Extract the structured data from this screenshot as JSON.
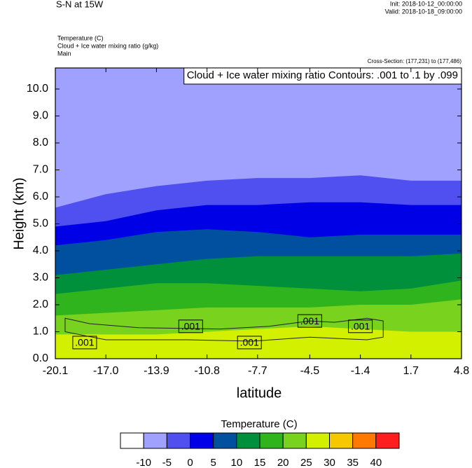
{
  "chart_data": {
    "type": "contour",
    "title": "S-N at 15W",
    "init": "Init: 2018-10-12_00:00:00",
    "valid": "Valid: 2018-10-18_09:00:00",
    "fields": [
      "Temperature   (C)",
      "Cloud + Ice water mixing ratio   (g/kg)",
      "Main"
    ],
    "cross_section": "Cross-Section: (177,231) to (177,486)",
    "contour_info": "Cloud + Ice water mixing ratio Contours: .001 to .1 by .099",
    "y_label": "Height (km)",
    "x_label": "latitude",
    "xlim": [
      -20.1,
      4.8
    ],
    "ylim": [
      0,
      10.78
    ],
    "xticks": [
      {
        "value": -20.1,
        "label": "-20.1"
      },
      {
        "value": -17,
        "label": "-17.0"
      },
      {
        "value": -13.9,
        "label": "-13.9"
      },
      {
        "value": -10.8,
        "label": "-10.8"
      },
      {
        "value": -7.7,
        "label": "-7.7"
      },
      {
        "value": -4.5,
        "label": "-4.5"
      },
      {
        "value": -1.4,
        "label": "-1.4"
      },
      {
        "value": 1.7,
        "label": "1.7"
      },
      {
        "value": 4.8,
        "label": "4.8"
      }
    ],
    "yticks": [
      {
        "value": 0,
        "label": "0.0"
      },
      {
        "value": 1,
        "label": "1.0"
      },
      {
        "value": 2,
        "label": "2.0"
      },
      {
        "value": 3,
        "label": "3.0"
      },
      {
        "value": 4,
        "label": "4.0"
      },
      {
        "value": 5,
        "label": "5.0"
      },
      {
        "value": 6,
        "label": "6.0"
      },
      {
        "value": 7,
        "label": "7.0"
      },
      {
        "value": 8,
        "label": "8.0"
      },
      {
        "value": 9,
        "label": "9.0"
      },
      {
        "value": 10,
        "label": "10.0"
      }
    ],
    "colorbar_title": "Temperature  (C)",
    "levels": [
      -10,
      -5,
      0,
      5,
      10,
      15,
      20,
      25,
      30,
      35,
      40
    ],
    "colors": [
      "#ffffff",
      "#a0a0ff",
      "#5050f0",
      "#0000e6",
      "#0050a0",
      "#00903c",
      "#30b41e",
      "#78d21e",
      "#d2f000",
      "#f5c800",
      "#ff7800",
      "#ff1e1e"
    ],
    "x": [
      -20.1,
      -17,
      -13.9,
      -10.8,
      -7.7,
      -4.5,
      -1.4,
      1.7,
      4.8
    ],
    "isolines": [
      [
        5.6,
        6.1,
        6.4,
        6.6,
        6.7,
        6.7,
        6.8,
        6.6,
        6.6
      ],
      [
        4.9,
        5.1,
        5.5,
        5.7,
        5.7,
        5.8,
        5.8,
        5.7,
        5.7
      ],
      [
        4.2,
        4.4,
        4.7,
        4.8,
        4.7,
        4.5,
        4.6,
        4.6,
        4.6
      ],
      [
        3.1,
        3.3,
        3.5,
        3.7,
        3.8,
        3.8,
        3.8,
        3.8,
        3.9
      ],
      [
        2.4,
        2.6,
        2.8,
        2.8,
        2.7,
        2.6,
        2.5,
        2.6,
        2.9
      ],
      [
        1.6,
        1.7,
        1.8,
        1.9,
        1.9,
        1.9,
        2.0,
        2.0,
        2.2
      ],
      [
        0.9,
        0.9,
        0.9,
        1.0,
        1.1,
        1.2,
        1.1,
        1.0,
        1.0
      ]
    ],
    "cloud_contour": {
      "x": [
        -19.5,
        -18,
        -15,
        -10,
        -7,
        -4.5,
        -3,
        -1,
        0,
        0,
        -1,
        -4.5,
        -8,
        -12,
        -17,
        -19.5
      ],
      "y": [
        1.5,
        1.3,
        1.15,
        1.1,
        1.2,
        1.4,
        1.35,
        1.5,
        1.4,
        0.8,
        0.7,
        0.8,
        0.65,
        0.7,
        0.7,
        1.0
      ]
    },
    "contour_labels": [
      {
        "text": ".001",
        "x": -18.3,
        "y": 0.6
      },
      {
        "text": ".001",
        "x": -11.8,
        "y": 1.2
      },
      {
        "text": ".001",
        "x": -8.2,
        "y": 0.6
      },
      {
        "text": ".001",
        "x": -4.5,
        "y": 1.4
      },
      {
        "text": ".001",
        "x": -1.4,
        "y": 1.2
      }
    ]
  }
}
